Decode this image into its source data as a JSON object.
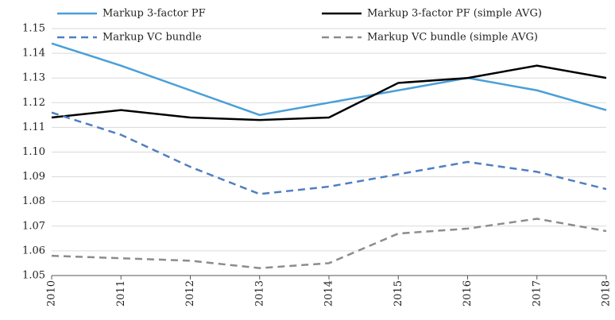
{
  "chart_data": {
    "type": "line",
    "categories": [
      "2010",
      "2011",
      "2012",
      "2013",
      "2014",
      "2015",
      "2016",
      "2017",
      "2018"
    ],
    "series": [
      {
        "name": "Markup 3-factor PF",
        "color": "#4a9fd8",
        "dash": false,
        "values": [
          1.144,
          1.135,
          1.125,
          1.115,
          1.12,
          1.125,
          1.13,
          1.125,
          1.117
        ]
      },
      {
        "name": "Markup 3-factor PF (simple AVG)",
        "color": "#000000",
        "dash": false,
        "values": [
          1.114,
          1.117,
          1.114,
          1.113,
          1.114,
          1.128,
          1.13,
          1.135,
          1.13
        ]
      },
      {
        "name": "Markup VC bundle",
        "color": "#4f7fc0",
        "dash": true,
        "values": [
          1.116,
          1.107,
          1.094,
          1.083,
          1.086,
          1.091,
          1.096,
          1.092,
          1.085
        ]
      },
      {
        "name": "Markup VC bundle (simple AVG)",
        "color": "#8c8c8c",
        "dash": true,
        "values": [
          1.058,
          1.057,
          1.056,
          1.053,
          1.055,
          1.067,
          1.069,
          1.073,
          1.068
        ]
      }
    ],
    "ylim": [
      1.05,
      1.15
    ],
    "yticks": [
      1.05,
      1.06,
      1.07,
      1.08,
      1.09,
      {
        "value": 1.1,
        "label": "1.10"
      },
      1.11,
      1.12,
      1.13,
      1.14,
      1.15
    ],
    "grid": true
  }
}
